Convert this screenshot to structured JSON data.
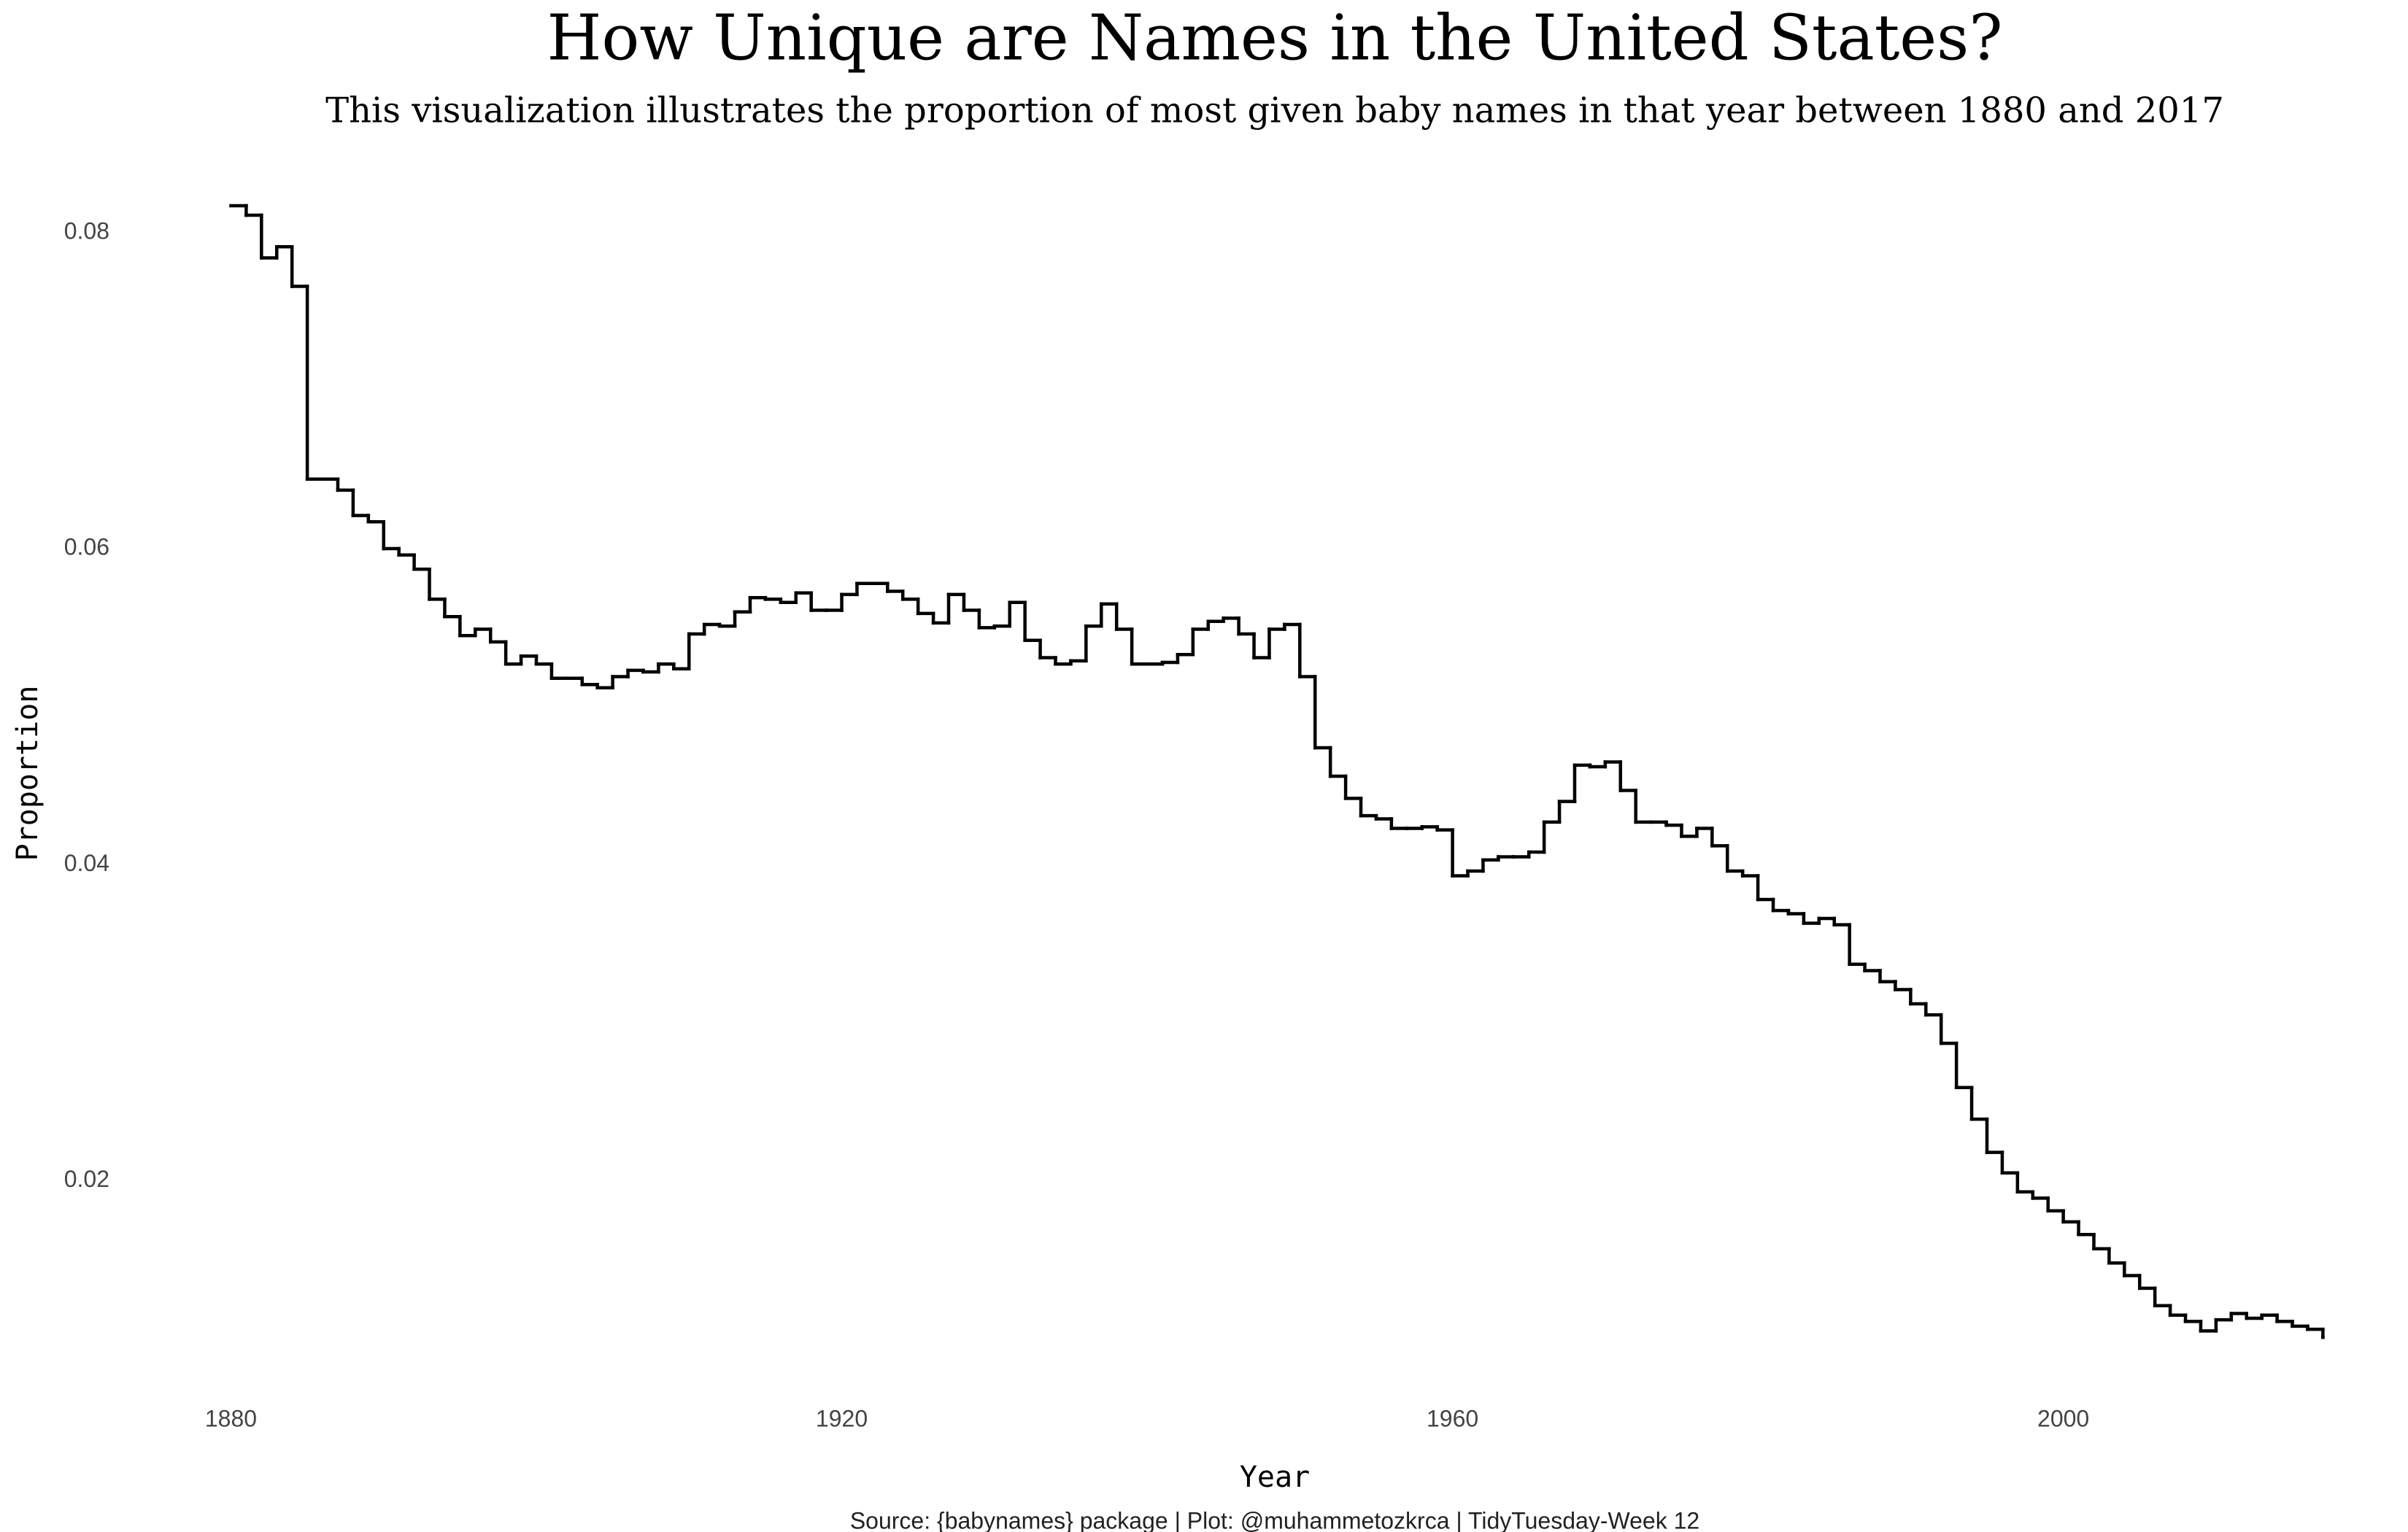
{
  "chart_data": {
    "type": "step",
    "title": "How Unique are Names in the United States?",
    "subtitle": "This visualization illustrates the proportion of most given baby names in that year between 1880 and 2017",
    "caption": "Source: {babynames} package | Plot: @muhammetozkrca | TidyTuesday-Week 12",
    "x_label": "Year",
    "y_label": "Proportion",
    "x": [
      1880,
      1881,
      1882,
      1883,
      1884,
      1885,
      1886,
      1887,
      1888,
      1889,
      1890,
      1891,
      1892,
      1893,
      1894,
      1895,
      1896,
      1897,
      1898,
      1899,
      1900,
      1901,
      1902,
      1903,
      1904,
      1905,
      1906,
      1907,
      1908,
      1909,
      1910,
      1911,
      1912,
      1913,
      1914,
      1915,
      1916,
      1917,
      1918,
      1919,
      1920,
      1921,
      1922,
      1923,
      1924,
      1925,
      1926,
      1927,
      1928,
      1929,
      1930,
      1931,
      1932,
      1933,
      1934,
      1935,
      1936,
      1937,
      1938,
      1939,
      1940,
      1941,
      1942,
      1943,
      1944,
      1945,
      1946,
      1947,
      1948,
      1949,
      1950,
      1951,
      1952,
      1953,
      1954,
      1955,
      1956,
      1957,
      1958,
      1959,
      1960,
      1961,
      1962,
      1963,
      1964,
      1965,
      1966,
      1967,
      1968,
      1969,
      1970,
      1971,
      1972,
      1973,
      1974,
      1975,
      1976,
      1977,
      1978,
      1979,
      1980,
      1981,
      1982,
      1983,
      1984,
      1985,
      1986,
      1987,
      1988,
      1989,
      1990,
      1991,
      1992,
      1993,
      1994,
      1995,
      1996,
      1997,
      1998,
      1999,
      2000,
      2001,
      2002,
      2003,
      2004,
      2005,
      2006,
      2007,
      2008,
      2009,
      2010,
      2011,
      2012,
      2013,
      2014,
      2015,
      2016,
      2017
    ],
    "series": [
      {
        "name": "Proportion",
        "color": "#000000",
        "values": [
          0.0817,
          0.0811,
          0.0784,
          0.0791,
          0.0766,
          0.0644,
          0.0644,
          0.0637,
          0.0621,
          0.0617,
          0.06,
          0.0596,
          0.0587,
          0.0568,
          0.0557,
          0.0545,
          0.0549,
          0.0541,
          0.0527,
          0.0532,
          0.0527,
          0.0518,
          0.0518,
          0.0514,
          0.0512,
          0.0519,
          0.0523,
          0.0522,
          0.0527,
          0.0524,
          0.0546,
          0.0552,
          0.0551,
          0.056,
          0.0569,
          0.0568,
          0.0566,
          0.0572,
          0.0561,
          0.0561,
          0.0571,
          0.0578,
          0.0578,
          0.0573,
          0.0568,
          0.0559,
          0.0553,
          0.0571,
          0.0561,
          0.055,
          0.0551,
          0.0566,
          0.0542,
          0.0531,
          0.0527,
          0.0529,
          0.0551,
          0.0565,
          0.0549,
          0.0527,
          0.0527,
          0.0528,
          0.0533,
          0.0549,
          0.0554,
          0.0556,
          0.0546,
          0.0531,
          0.0549,
          0.0552,
          0.0519,
          0.0474,
          0.0456,
          0.0442,
          0.0431,
          0.0429,
          0.0423,
          0.0423,
          0.0424,
          0.0422,
          0.0393,
          0.0396,
          0.0403,
          0.0405,
          0.0405,
          0.0408,
          0.0427,
          0.044,
          0.0463,
          0.0462,
          0.0465,
          0.0447,
          0.0427,
          0.0427,
          0.0425,
          0.0418,
          0.0423,
          0.0412,
          0.0396,
          0.0393,
          0.0378,
          0.0371,
          0.0369,
          0.0363,
          0.0366,
          0.0362,
          0.0337,
          0.0333,
          0.0326,
          0.0321,
          0.0312,
          0.0305,
          0.0287,
          0.0259,
          0.0239,
          0.0218,
          0.0205,
          0.0193,
          0.0189,
          0.0181,
          0.0174,
          0.0166,
          0.0157,
          0.0148,
          0.014,
          0.0132,
          0.0121,
          0.0115,
          0.0111,
          0.0105,
          0.0112,
          0.0116,
          0.0113,
          0.0115,
          0.0111,
          0.0108,
          0.0106,
          0.0101
        ]
      }
    ],
    "xlim": [
      1873,
      2022
    ],
    "xticks": [
      1880,
      1920,
      1960,
      2000
    ],
    "ylim": [
      0.0065,
      0.0853
    ],
    "yticks": [
      0.02,
      0.04,
      0.06,
      0.08
    ],
    "grid": false
  }
}
